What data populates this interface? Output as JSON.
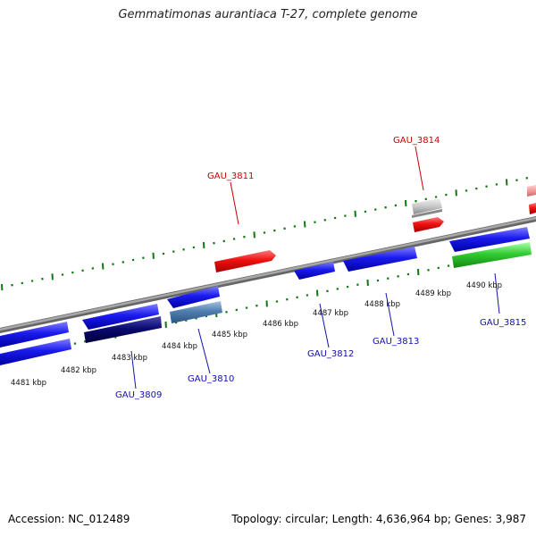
{
  "title": "Gemmatimonas aurantiaca T-27, complete genome",
  "footer": {
    "accession": "Accession: NC_012489",
    "topology": "Topology: circular; Length: 4,636,964 bp; Genes: 3,987"
  },
  "kbp_labels": [
    "4481 kbp",
    "4482 kbp",
    "4483 kbp",
    "4484 kbp",
    "4485 kbp",
    "4486 kbp",
    "4487 kbp",
    "4488 kbp",
    "4489 kbp",
    "4490 kbp"
  ],
  "gene_labels": [
    {
      "text": "GAU_3811",
      "color": "#cc0000"
    },
    {
      "text": "GAU_3814",
      "color": "#cc0000"
    },
    {
      "text": "GAU_3809",
      "color": "#1010aa"
    },
    {
      "text": "GAU_3810",
      "color": "#1010aa"
    },
    {
      "text": "GAU_3812",
      "color": "#1010aa"
    },
    {
      "text": "GAU_3813",
      "color": "#1010aa"
    },
    {
      "text": "GAU_3815",
      "color": "#1010aa"
    }
  ],
  "colors": {
    "backbone": "#888888",
    "forward_cds": "#ee1111",
    "reverse_cds": "#1a1aee",
    "dark_cds": "#0a0a70",
    "steel_cds": "#4f7fb0",
    "grey_cds": "#c8c8c8",
    "green_cds": "#33cc33",
    "pink_cds": "#f49a9a",
    "tick": "#117711"
  }
}
